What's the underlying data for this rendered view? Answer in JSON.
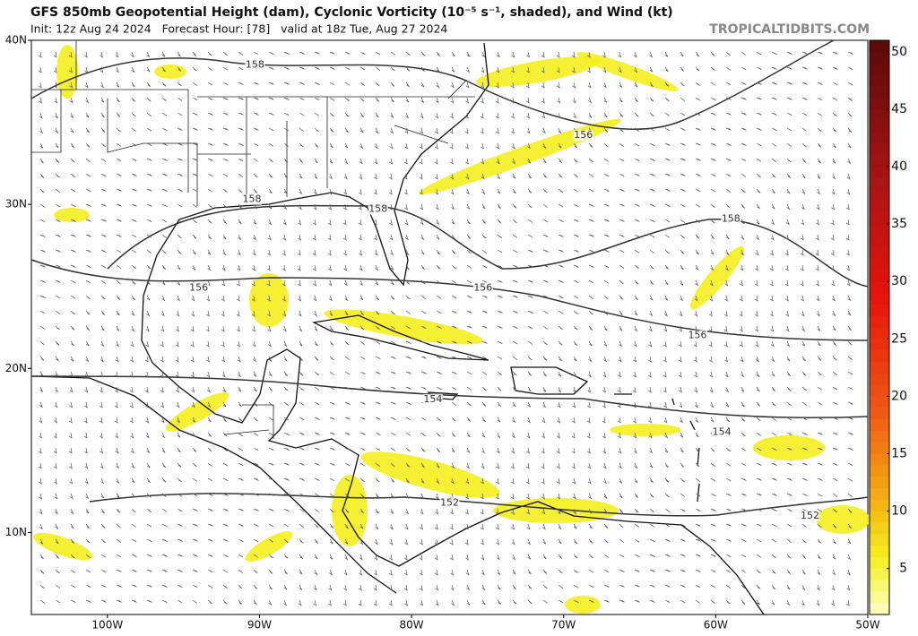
{
  "header": {
    "title": "GFS 850mb Geopotential Height (dam), Cyclonic Vorticity (10⁻⁵ s⁻¹, shaded), and Wind (kt)",
    "init": "Init: 12z Aug 24 2024   Forecast Hour: [78]   valid at 18z Tue, Aug 27 2024",
    "site": "TROPICALTIDBITS.COM"
  },
  "map": {
    "xlim": [
      -105,
      -50
    ],
    "ylim": [
      5,
      40
    ],
    "xticks": [
      {
        "value": -100,
        "label": "100W"
      },
      {
        "value": -90,
        "label": "90W"
      },
      {
        "value": -80,
        "label": "80W"
      },
      {
        "value": -70,
        "label": "70W"
      },
      {
        "value": -60,
        "label": "60W"
      },
      {
        "value": -50,
        "label": "50W"
      }
    ],
    "yticks": [
      {
        "value": 40,
        "label": "40N"
      },
      {
        "value": 30,
        "label": "30N"
      },
      {
        "value": 20,
        "label": "20N"
      },
      {
        "value": 10,
        "label": "10N"
      }
    ],
    "contour_labels": [
      {
        "value": 158,
        "lon": -90.3,
        "lat": 38.5
      },
      {
        "value": 156,
        "lon": -68.7,
        "lat": 34.2
      },
      {
        "value": 158,
        "lon": -90.5,
        "lat": 30.3
      },
      {
        "value": 158,
        "lon": -82.2,
        "lat": 29.7
      },
      {
        "value": 158,
        "lon": -59,
        "lat": 29.1
      },
      {
        "value": 156,
        "lon": -94,
        "lat": 24.9
      },
      {
        "value": 156,
        "lon": -75.3,
        "lat": 24.9
      },
      {
        "value": 156,
        "lon": -61.2,
        "lat": 22
      },
      {
        "value": 154,
        "lon": -78.6,
        "lat": 18.1
      },
      {
        "value": 154,
        "lon": -59.6,
        "lat": 16.1
      },
      {
        "value": 152,
        "lon": -77.5,
        "lat": 11.8
      },
      {
        "value": 152,
        "lon": -53.8,
        "lat": 11
      }
    ]
  },
  "colorbar": {
    "lim": [
      1,
      51
    ],
    "ticks": [
      5,
      10,
      15,
      20,
      25,
      30,
      35,
      40,
      45,
      50
    ]
  }
}
